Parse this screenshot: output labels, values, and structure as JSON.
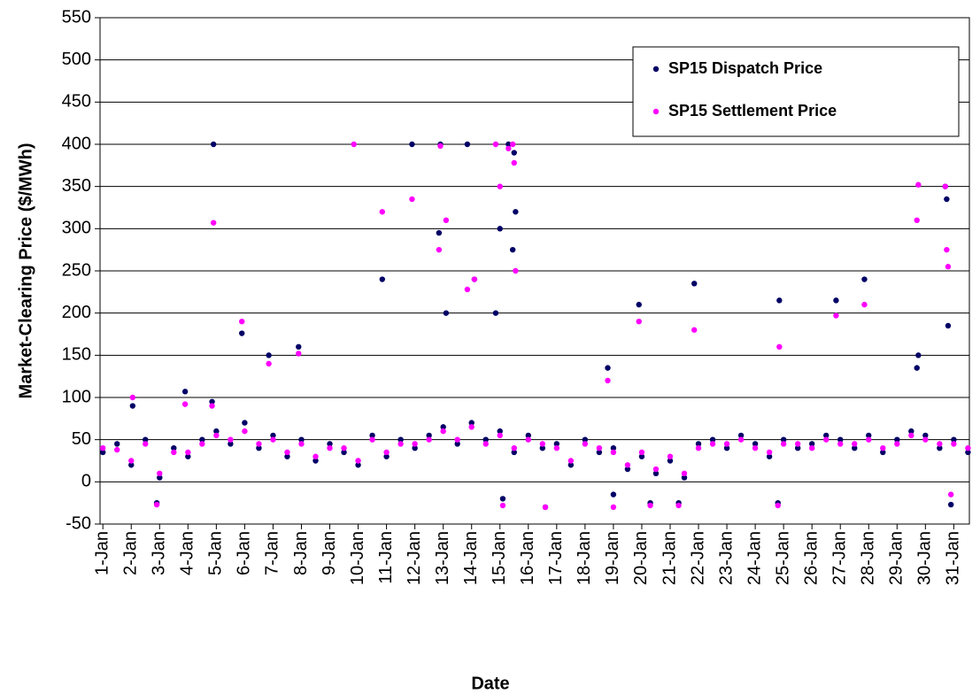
{
  "chart_data": {
    "type": "scatter",
    "xlabel": "Date",
    "ylabel": "Market-Clearing Price ($/MWh)",
    "x": [
      1,
      1.5,
      2,
      2.5,
      3,
      3.5,
      4,
      4.5,
      5,
      5.5,
      6,
      6.5,
      7,
      7.5,
      8,
      8.5,
      9,
      9.5,
      10,
      10.5,
      11,
      11.5,
      12,
      12.5,
      13,
      13.5,
      14,
      14.5,
      15,
      15.5,
      16,
      16.5,
      17,
      17.5,
      18,
      18.5,
      19,
      19.5,
      20,
      20.5,
      21,
      21.5,
      22,
      22.5,
      23,
      23.5,
      24,
      24.5,
      25,
      25.5,
      26,
      26.5,
      27,
      27.5,
      28,
      28.5,
      29,
      29.5,
      30,
      30.5,
      31,
      31.5,
      4.9,
      4.85,
      5.9,
      6.85,
      7.9,
      9.85,
      10.85,
      11.9,
      12.85,
      12.9,
      13.1,
      13.85,
      14.1,
      14.85,
      15,
      15.3,
      15.45,
      15.5,
      15.55,
      18.8,
      19.9,
      21.85,
      24.85,
      26.85,
      27.85,
      29.75,
      29.7,
      30.7,
      30.75,
      30.8,
      2.05,
      3.9,
      21.3,
      15.1,
      24.8,
      16.6,
      2.9,
      30.9,
      19,
      20.3
    ],
    "series": [
      {
        "name": "SP15 Dispatch Price",
        "color": "#000066",
        "values": [
          35,
          45,
          20,
          50,
          5,
          40,
          30,
          50,
          60,
          45,
          70,
          40,
          55,
          30,
          50,
          25,
          45,
          35,
          20,
          55,
          30,
          50,
          40,
          55,
          65,
          45,
          70,
          50,
          60,
          35,
          55,
          40,
          45,
          20,
          50,
          35,
          40,
          15,
          30,
          10,
          25,
          5,
          45,
          50,
          40,
          55,
          45,
          30,
          50,
          40,
          45,
          55,
          50,
          40,
          55,
          35,
          50,
          60,
          55,
          40,
          50,
          35,
          400,
          95,
          176,
          150,
          160,
          null,
          240,
          400,
          295,
          400,
          200,
          400,
          240,
          200,
          300,
          400,
          275,
          390,
          320,
          135,
          210,
          235,
          215,
          215,
          240,
          150,
          135,
          350,
          335,
          185,
          90,
          107,
          -25,
          -20,
          -25,
          -30,
          -25,
          -27,
          -15,
          -25
        ]
      },
      {
        "name": "SP15 Settlement Price",
        "color": "#FF00FF",
        "values": [
          40,
          38,
          25,
          45,
          10,
          35,
          35,
          45,
          55,
          50,
          60,
          45,
          50,
          35,
          45,
          30,
          40,
          40,
          25,
          50,
          35,
          45,
          45,
          50,
          60,
          50,
          65,
          45,
          55,
          40,
          50,
          45,
          40,
          25,
          45,
          40,
          35,
          20,
          35,
          15,
          30,
          10,
          40,
          45,
          45,
          50,
          40,
          35,
          45,
          45,
          40,
          50,
          45,
          45,
          50,
          40,
          45,
          55,
          50,
          45,
          45,
          40,
          307,
          90,
          190,
          140,
          152,
          400,
          320,
          335,
          275,
          398,
          310,
          228,
          240,
          400,
          350,
          395,
          400,
          378,
          250,
          120,
          190,
          180,
          160,
          197,
          210,
          352,
          310,
          350,
          275,
          255,
          100,
          92,
          -28,
          -28,
          -28,
          -30,
          -27,
          -15,
          -30,
          -28
        ]
      }
    ],
    "xlim": [
      0.9,
      31.55
    ],
    "ylim": [
      -50,
      550
    ],
    "yticks": [
      -50,
      0,
      50,
      100,
      150,
      200,
      250,
      300,
      350,
      400,
      450,
      500,
      550
    ],
    "xticks": [
      {
        "value": 1,
        "label": "1-Jan"
      },
      {
        "value": 2,
        "label": "2-Jan"
      },
      {
        "value": 3,
        "label": "3-Jan"
      },
      {
        "value": 4,
        "label": "4-Jan"
      },
      {
        "value": 5,
        "label": "5-Jan"
      },
      {
        "value": 6,
        "label": "6-Jan"
      },
      {
        "value": 7,
        "label": "7-Jan"
      },
      {
        "value": 8,
        "label": "8-Jan"
      },
      {
        "value": 9,
        "label": "9-Jan"
      },
      {
        "value": 10,
        "label": "10-Jan"
      },
      {
        "value": 11,
        "label": "11-Jan"
      },
      {
        "value": 12,
        "label": "12-Jan"
      },
      {
        "value": 13,
        "label": "13-Jan"
      },
      {
        "value": 14,
        "label": "14-Jan"
      },
      {
        "value": 15,
        "label": "15-Jan"
      },
      {
        "value": 16,
        "label": "16-Jan"
      },
      {
        "value": 17,
        "label": "17-Jan"
      },
      {
        "value": 18,
        "label": "18-Jan"
      },
      {
        "value": 19,
        "label": "19-Jan"
      },
      {
        "value": 20,
        "label": "20-Jan"
      },
      {
        "value": 21,
        "label": "21-Jan"
      },
      {
        "value": 22,
        "label": "22-Jan"
      },
      {
        "value": 23,
        "label": "23-Jan"
      },
      {
        "value": 24,
        "label": "24-Jan"
      },
      {
        "value": 25,
        "label": "25-Jan"
      },
      {
        "value": 26,
        "label": "26-Jan"
      },
      {
        "value": 27,
        "label": "27-Jan"
      },
      {
        "value": 28,
        "label": "28-Jan"
      },
      {
        "value": 29,
        "label": "29-Jan"
      },
      {
        "value": 30,
        "label": "30-Jan"
      },
      {
        "value": 31,
        "label": "31-Jan"
      }
    ],
    "grid": true,
    "legend": "upper right"
  }
}
